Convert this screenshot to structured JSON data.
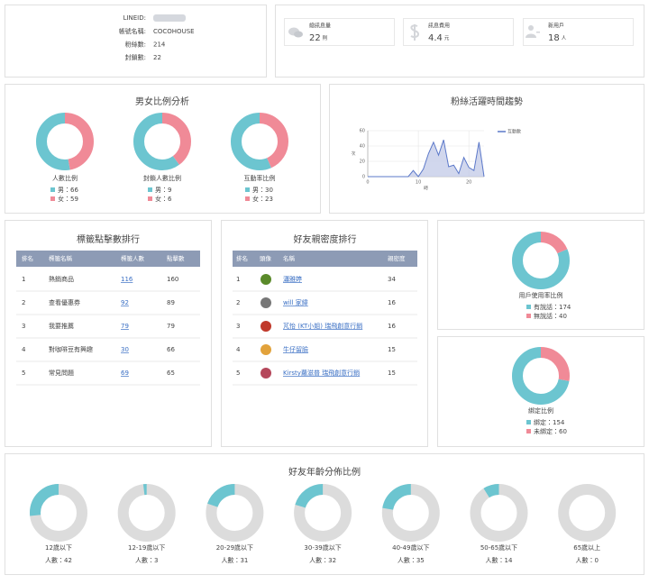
{
  "colors": {
    "primary": "#6cc5d0",
    "secondary": "#f08a97",
    "track": "#dcdcdc",
    "link": "#3a6fc4",
    "header": "#8d9bb5"
  },
  "account": {
    "lineid_label": "LINEID:",
    "rows": [
      {
        "label": "帳號名稱:",
        "value": "COCOHOUSE"
      },
      {
        "label": "粉絲數:",
        "value": 214
      },
      {
        "label": "封鎖數:",
        "value": 22
      }
    ]
  },
  "stats": [
    {
      "label": "總訊息量",
      "value": 22,
      "unit": "則"
    },
    {
      "label": "訊息費用",
      "value": 4.4,
      "unit": "元"
    },
    {
      "label": "新用戶",
      "value": 18,
      "unit": "人"
    }
  ],
  "gender": {
    "title": "男女比例分析",
    "charts": [
      {
        "label": "人數比例",
        "items": [
          {
            "name": "男：",
            "value": 66
          },
          {
            "name": "女：",
            "value": 59
          }
        ]
      },
      {
        "label": "封鎖人數比例",
        "items": [
          {
            "name": "男：",
            "value": 9
          },
          {
            "name": "女：",
            "value": 6
          }
        ]
      },
      {
        "label": "互動率比例",
        "items": [
          {
            "name": "男：",
            "value": 30
          },
          {
            "name": "女：",
            "value": 23
          }
        ]
      }
    ]
  },
  "trend": {
    "type": "line",
    "title": "粉絲活躍時間趨勢",
    "x": [
      0,
      1,
      2,
      3,
      4,
      5,
      6,
      7,
      8,
      9,
      10,
      11,
      12,
      13,
      14,
      15,
      16,
      17,
      18,
      19,
      20,
      21,
      22,
      23
    ],
    "series": [
      {
        "name": "互動數",
        "color": "#5b78c9",
        "fill": "#c5cde8",
        "values": [
          0,
          0,
          0,
          0,
          0,
          0,
          0,
          0,
          0,
          8,
          0,
          10,
          30,
          45,
          28,
          48,
          13,
          15,
          4,
          25,
          12,
          8,
          45,
          0
        ]
      }
    ],
    "xlim": [
      0,
      23
    ],
    "ylim": [
      0,
      60
    ],
    "xticks": [
      0,
      10,
      20
    ],
    "yticks": [
      0,
      20,
      40,
      60
    ],
    "xlabel": "時",
    "ylabel": "次",
    "grid": true
  },
  "tag_rank": {
    "title": "標籤點擊數排行",
    "columns": [
      "排名",
      "標籤名稱",
      "標籤人數",
      "點擊數"
    ],
    "rows": [
      [
        1,
        "熱銷商品",
        116,
        160
      ],
      [
        2,
        "查看優惠券",
        92,
        89
      ],
      [
        3,
        "我要推薦",
        79,
        79
      ],
      [
        4,
        "對咖啡豆有興趣",
        30,
        66
      ],
      [
        5,
        "常見問題",
        69,
        65
      ]
    ]
  },
  "intimacy_rank": {
    "title": "好友親密度排行",
    "columns": [
      "排名",
      "頭像",
      "名稱",
      "親密度"
    ],
    "rows": [
      [
        1,
        "瀟雅婷",
        34
      ],
      [
        2,
        "will 家緯",
        16
      ],
      [
        3,
        "芃怡 (KT小姐) 瑞飛創意行銷",
        16
      ],
      [
        4,
        "牛仔留臉",
        15
      ],
      [
        5,
        "Kirsty蘿滋普 瑞飛創意行銷",
        15
      ]
    ]
  },
  "usage": {
    "label": "用戶使用率比例",
    "items": [
      {
        "name": "有說話：",
        "value": 174
      },
      {
        "name": "無說話：",
        "value": 40
      }
    ]
  },
  "binding": {
    "label": "綁定比例",
    "items": [
      {
        "name": "綁定：",
        "value": 154
      },
      {
        "name": "未綁定：",
        "value": 60
      }
    ]
  },
  "age": {
    "title": "好友年齡分佈比例",
    "count_label": "人數：",
    "groups": [
      {
        "label": "12歲以下",
        "value": 42
      },
      {
        "label": "12-19歲以下",
        "value": 3
      },
      {
        "label": "20-29歲以下",
        "value": 31
      },
      {
        "label": "30-39歲以下",
        "value": 32
      },
      {
        "label": "40-49歲以下",
        "value": 35
      },
      {
        "label": "50-65歲以下",
        "value": 14
      },
      {
        "label": "65歲以上",
        "value": 0
      }
    ]
  }
}
